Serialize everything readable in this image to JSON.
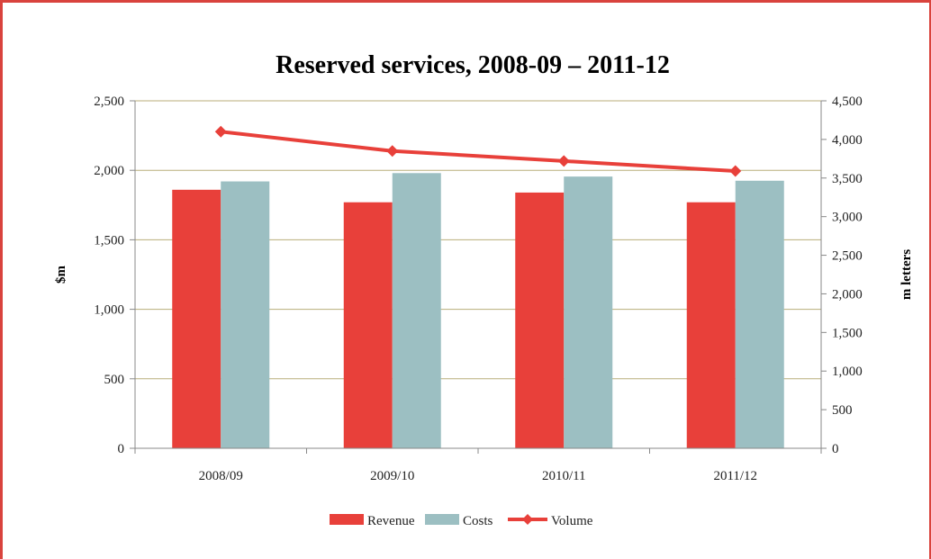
{
  "chart_data": {
    "type": "bar",
    "title": "Reserved services, 2008-09 – 2011-12",
    "categories": [
      "2008/09",
      "2009/10",
      "2010/11",
      "2011/12"
    ],
    "ylabel": "$m",
    "y2label": "m letters",
    "ylim": [
      0,
      2500
    ],
    "y2lim": [
      0,
      4500
    ],
    "yticks": [
      "0",
      "500",
      "1,000",
      "1,500",
      "2,000",
      "2,500"
    ],
    "y2ticks": [
      "0",
      "500",
      "1,000",
      "1,500",
      "2,000",
      "2,500",
      "3,000",
      "3,500",
      "4,000",
      "4,500"
    ],
    "grid": true,
    "legend_position": "bottom",
    "series": [
      {
        "name": "Revenue",
        "kind": "bar",
        "axis": "left",
        "color": "#e8403a",
        "values": [
          1860,
          1770,
          1840,
          1770
        ]
      },
      {
        "name": "Costs",
        "kind": "bar",
        "axis": "left",
        "color": "#9cbfc2",
        "values": [
          1920,
          1980,
          1955,
          1925
        ]
      },
      {
        "name": "Volume",
        "kind": "line",
        "axis": "right",
        "color": "#e8403a",
        "values": [
          4100,
          3850,
          3720,
          3590
        ]
      }
    ]
  },
  "colors": {
    "frame": "#d9433d",
    "gridline": "#b8ae7a",
    "axis": "#888888"
  }
}
